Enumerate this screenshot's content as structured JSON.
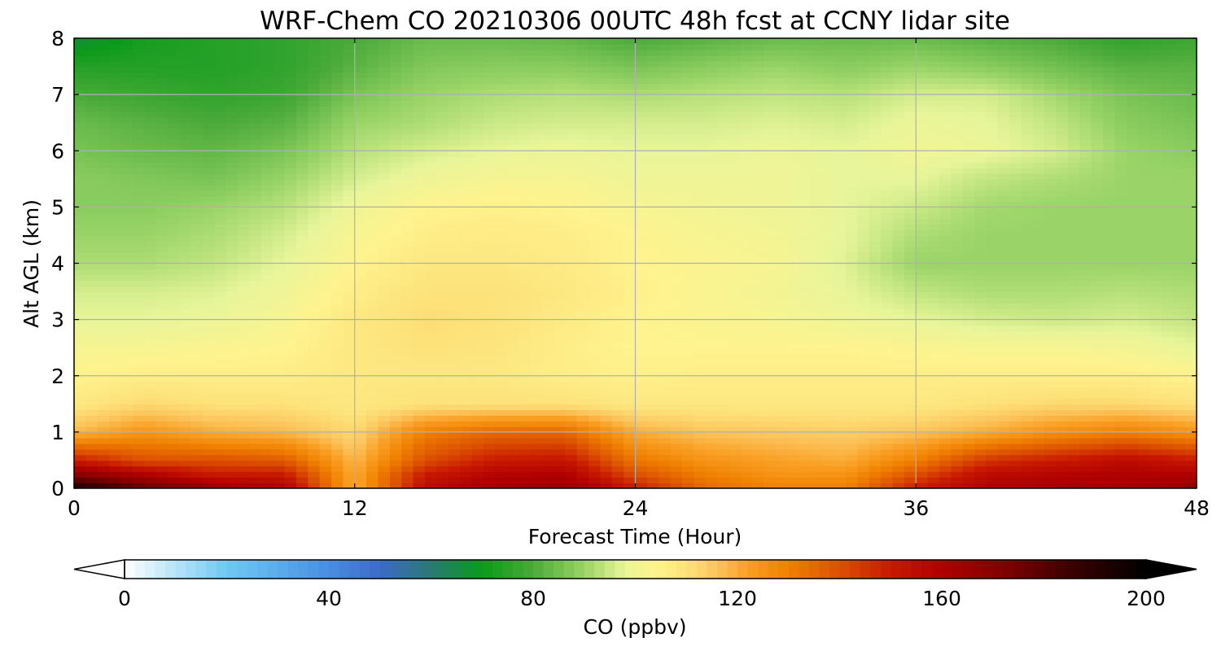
{
  "chart_data": {
    "type": "heatmap",
    "title": "WRF-Chem CO  20210306 00UTC 48h fcst at CCNY lidar site",
    "xlabel": "Forecast Time (Hour)",
    "ylabel": "Alt AGL (km)",
    "xlim": [
      0,
      48
    ],
    "ylim": [
      0,
      8
    ],
    "xticks": [
      "0",
      "12",
      "24",
      "36",
      "48"
    ],
    "yticks": [
      "0",
      "1",
      "2",
      "3",
      "4",
      "5",
      "6",
      "7",
      "8"
    ],
    "grid": true,
    "x": [
      0,
      3,
      6,
      9,
      12,
      15,
      18,
      21,
      24,
      27,
      30,
      33,
      36,
      39,
      42,
      45,
      48
    ],
    "y": [
      0,
      0.25,
      0.5,
      1,
      1.5,
      2,
      2.5,
      3,
      3.5,
      4,
      4.5,
      5,
      5.5,
      6,
      6.5,
      7,
      7.5,
      8
    ],
    "z": [
      [
        195,
        178,
        168,
        160,
        120,
        155,
        165,
        168,
        150,
        135,
        130,
        130,
        150,
        160,
        162,
        165,
        168
      ],
      [
        170,
        160,
        150,
        150,
        120,
        150,
        158,
        160,
        140,
        130,
        125,
        125,
        140,
        155,
        158,
        160,
        160
      ],
      [
        150,
        140,
        140,
        138,
        118,
        140,
        150,
        152,
        132,
        125,
        122,
        120,
        130,
        145,
        150,
        155,
        150
      ],
      [
        118,
        125,
        120,
        118,
        112,
        130,
        135,
        135,
        120,
        116,
        115,
        114,
        116,
        120,
        126,
        130,
        125
      ],
      [
        108,
        112,
        110,
        110,
        108,
        110,
        110,
        110,
        108,
        108,
        108,
        108,
        108,
        110,
        112,
        112,
        110
      ],
      [
        104,
        106,
        106,
        106,
        108,
        108,
        108,
        106,
        105,
        106,
        106,
        106,
        106,
        106,
        106,
        106,
        104
      ],
      [
        102,
        102,
        103,
        104,
        108,
        110,
        109,
        106,
        104,
        104,
        104,
        104,
        103,
        102,
        102,
        101,
        98
      ],
      [
        98,
        98,
        99,
        102,
        108,
        111,
        110,
        107,
        104,
        103,
        102,
        100,
        98,
        96,
        95,
        96,
        94
      ],
      [
        96,
        96,
        97,
        100,
        106,
        110,
        110,
        108,
        105,
        103,
        101,
        98,
        94,
        92,
        92,
        93,
        92
      ],
      [
        92,
        92,
        94,
        98,
        104,
        108,
        108,
        107,
        104,
        103,
        102,
        97,
        90,
        90,
        90,
        90,
        90
      ],
      [
        90,
        90,
        92,
        96,
        102,
        106,
        107,
        106,
        104,
        102,
        101,
        98,
        92,
        90,
        90,
        90,
        90
      ],
      [
        88,
        88,
        90,
        93,
        100,
        104,
        105,
        104,
        102,
        101,
        100,
        98,
        95,
        91,
        90,
        90,
        90
      ],
      [
        88,
        87,
        86,
        90,
        96,
        100,
        102,
        102,
        100,
        100,
        100,
        98,
        98,
        94,
        92,
        90,
        90
      ],
      [
        86,
        84,
        83,
        86,
        93,
        96,
        98,
        99,
        98,
        98,
        99,
        98,
        100,
        99,
        96,
        90,
        88
      ],
      [
        84,
        82,
        80,
        82,
        90,
        92,
        95,
        96,
        96,
        96,
        97,
        96,
        99,
        98,
        94,
        88,
        86
      ],
      [
        80,
        78,
        76,
        78,
        86,
        90,
        92,
        93,
        92,
        93,
        94,
        93,
        96,
        96,
        91,
        86,
        84
      ],
      [
        74,
        74,
        74,
        76,
        82,
        87,
        88,
        88,
        86,
        88,
        90,
        88,
        90,
        88,
        85,
        82,
        82
      ],
      [
        66,
        72,
        74,
        76,
        80,
        84,
        84,
        83,
        80,
        82,
        84,
        84,
        84,
        82,
        80,
        76,
        78
      ]
    ],
    "colorbar": {
      "label": "CO  (ppbv)",
      "ticks": [
        "0",
        "40",
        "80",
        "120",
        "160",
        "200"
      ],
      "min": 0,
      "max": 200,
      "extend": "both",
      "colormap_stops": [
        [
          0,
          "#ffffff"
        ],
        [
          20,
          "#6fc8f2"
        ],
        [
          40,
          "#4a8ee0"
        ],
        [
          50,
          "#3a6ac8"
        ],
        [
          60,
          "#2a7a72"
        ],
        [
          70,
          "#0a9a1a"
        ],
        [
          80,
          "#4aaa3a"
        ],
        [
          90,
          "#9ad468"
        ],
        [
          98,
          "#e8f59a"
        ],
        [
          104,
          "#fef38e"
        ],
        [
          110,
          "#fde27a"
        ],
        [
          116,
          "#fcc45c"
        ],
        [
          122,
          "#f9a025"
        ],
        [
          130,
          "#f08000"
        ],
        [
          140,
          "#dc5000"
        ],
        [
          150,
          "#c81800"
        ],
        [
          160,
          "#b00000"
        ],
        [
          172,
          "#800000"
        ],
        [
          185,
          "#3c0000"
        ],
        [
          200,
          "#000000"
        ]
      ]
    }
  }
}
